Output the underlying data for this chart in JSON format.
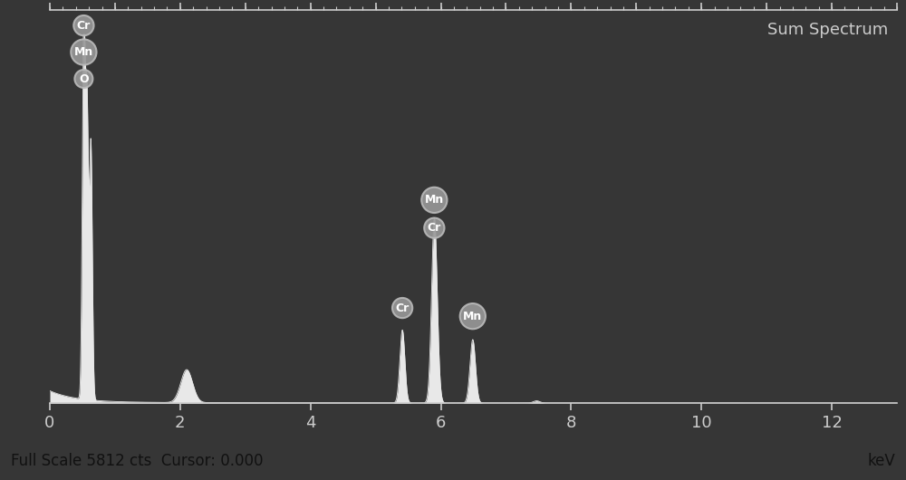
{
  "background_color": "#363636",
  "footer_color": "#c8c8c8",
  "text_color": "#cccccc",
  "spectrum_color": "#e8e8e8",
  "title": "Sum Spectrum",
  "footer_left": "Full Scale 5812 cts  Cursor: 0.000",
  "footer_right": "keV",
  "xlim": [
    0,
    13
  ],
  "ylim": [
    0,
    6200
  ],
  "xticks": [
    0,
    2,
    4,
    6,
    8,
    10,
    12
  ],
  "badge_color": "#999999",
  "badge_edge_color": "#bbbbbb",
  "badge_text_color": "#ffffff",
  "badge_fontsize": 9,
  "title_fontsize": 13,
  "tick_label_fontsize": 13,
  "footer_fontsize": 12
}
